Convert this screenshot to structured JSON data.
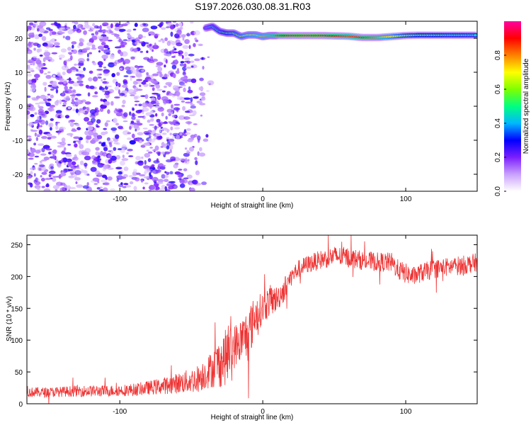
{
  "figure": {
    "title": "S197.2026.030.08.31.R03"
  },
  "chart_data": [
    {
      "type": "heatmap",
      "xlabel": "Height of straight line (km)",
      "ylabel": "Frequency (Hz)",
      "xlim": [
        -165,
        150
      ],
      "ylim": [
        -25,
        25
      ],
      "xticks": [
        -100,
        0,
        100
      ],
      "xtick_labels": [
        "-100",
        "0",
        "100"
      ],
      "yticks": [
        -20,
        -10,
        0,
        10,
        20
      ],
      "ytick_labels": [
        "-20",
        "-10",
        "0",
        "10",
        "20"
      ],
      "colorbar": {
        "label": "Normalized spectral amplitude",
        "range": [
          0,
          1
        ],
        "ticks": [
          0.0,
          0.2,
          0.4,
          0.6,
          0.8
        ],
        "tick_labels": [
          "0.0",
          "0.2",
          "0.4",
          "0.6",
          "0.8"
        ],
        "colors": [
          "#ffffff",
          "#c9a0ff",
          "#7b1fff",
          "#0000ff",
          "#00b7ff",
          "#00ff80",
          "#7fff00",
          "#ffff00",
          "#ff8000",
          "#ff0000",
          "#ff00a0"
        ]
      },
      "ridge": {
        "x": [
          -40,
          -35,
          -30,
          -25,
          -20,
          -15,
          -10,
          -5,
          0,
          5,
          10,
          20,
          30,
          40,
          50,
          60,
          70,
          80,
          90,
          100,
          110,
          120,
          130,
          140,
          150
        ],
        "frequency": [
          23,
          23.5,
          22,
          21.5,
          21.5,
          20.5,
          21,
          21,
          20.5,
          20.8,
          20.8,
          20.8,
          20.8,
          20.8,
          20.7,
          20.6,
          20.2,
          20.2,
          20.5,
          20.8,
          20.9,
          20.9,
          20.9,
          20.9,
          20.9
        ],
        "amplitude": [
          0.35,
          0.45,
          0.5,
          0.55,
          0.6,
          0.65,
          0.7,
          0.72,
          0.75,
          0.8,
          0.85,
          0.95,
          0.98,
          0.97,
          0.9,
          0.85,
          0.88,
          0.8,
          0.7,
          0.6,
          0.55,
          0.55,
          0.5,
          0.5,
          0.45
        ]
      },
      "noise_region": {
        "x_start": -165,
        "x_fade_end": -55,
        "x_end": -35
      }
    },
    {
      "type": "line",
      "xlabel": "Height of straight line (km)",
      "ylabel": "SNR (10 * v/v)",
      "xlim": [
        -165,
        150
      ],
      "ylim": [
        0,
        265
      ],
      "xticks": [
        -100,
        0,
        100
      ],
      "xtick_labels": [
        "-100",
        "0",
        "100"
      ],
      "yticks": [
        0,
        50,
        100,
        150,
        200,
        250
      ],
      "ytick_labels": [
        "0",
        "50",
        "100",
        "150",
        "200",
        "250"
      ],
      "color": "#ee3333",
      "series": [
        {
          "x": [
            -165,
            -150,
            -140,
            -130,
            -120,
            -110,
            -100,
            -90,
            -80,
            -70,
            -60,
            -50,
            -45,
            -40,
            -35,
            -30,
            -25,
            -20,
            -15,
            -10,
            -5,
            0,
            5,
            10,
            15,
            20,
            25,
            30,
            40,
            50,
            60,
            70,
            80,
            90,
            95,
            100,
            105,
            110,
            120,
            130,
            140,
            150
          ],
          "values": [
            18,
            18,
            19,
            20,
            20,
            20,
            21,
            22,
            25,
            28,
            32,
            36,
            40,
            48,
            55,
            65,
            75,
            90,
            100,
            110,
            140,
            150,
            162,
            165,
            180,
            200,
            212,
            218,
            226,
            232,
            230,
            225,
            223,
            222,
            210,
            205,
            200,
            205,
            212,
            215,
            218,
            222
          ],
          "spread": [
            8,
            8,
            8,
            9,
            9,
            9,
            9,
            10,
            11,
            13,
            16,
            20,
            22,
            25,
            30,
            40,
            45,
            35,
            35,
            45,
            30,
            25,
            25,
            20,
            20,
            15,
            14,
            14,
            15,
            16,
            16,
            15,
            15,
            16,
            16,
            16,
            15,
            15,
            15,
            15,
            15,
            15
          ]
        }
      ]
    }
  ]
}
